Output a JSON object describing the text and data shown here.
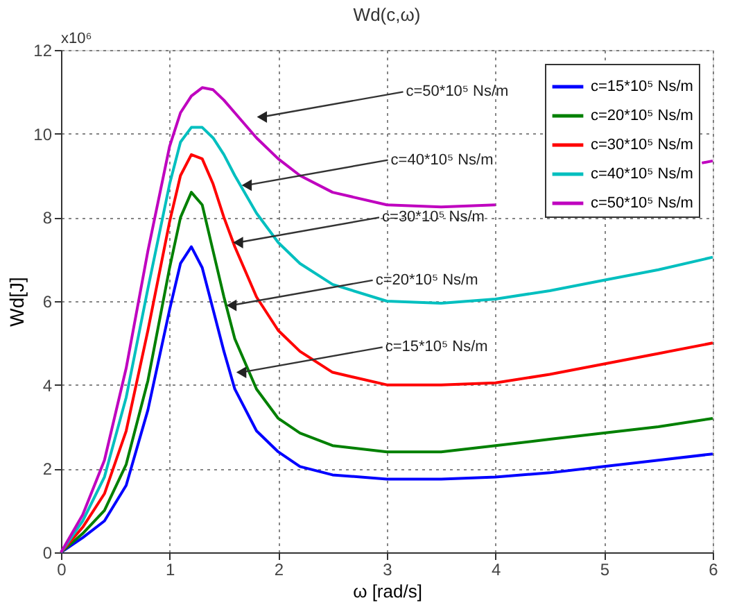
{
  "chart_data": {
    "type": "line",
    "title": "Wd(c,ω)",
    "xlabel": "ω [rad/s]",
    "ylabel": "Wd[J]",
    "x": [
      0,
      0.2,
      0.4,
      0.6,
      0.8,
      1.0,
      1.1,
      1.2,
      1.3,
      1.4,
      1.5,
      1.6,
      1.8,
      2.0,
      2.2,
      2.5,
      3.0,
      3.5,
      4.0,
      4.5,
      5.0,
      5.5,
      6.0
    ],
    "series": [
      {
        "name": "c=15*10⁵ Ns/m",
        "color": "#0000ff",
        "values": [
          0,
          0.35,
          0.75,
          1.6,
          3.4,
          5.8,
          6.9,
          7.3,
          6.8,
          5.8,
          4.8,
          3.9,
          2.9,
          2.4,
          2.05,
          1.85,
          1.75,
          1.75,
          1.8,
          1.9,
          2.05,
          2.2,
          2.35
        ]
      },
      {
        "name": "c=20*10⁵ Ns/m",
        "color": "#008000",
        "values": [
          0,
          0.45,
          1.0,
          2.1,
          4.1,
          6.8,
          8.0,
          8.6,
          8.3,
          7.2,
          6.1,
          5.1,
          3.9,
          3.2,
          2.85,
          2.55,
          2.4,
          2.4,
          2.55,
          2.7,
          2.85,
          3.0,
          3.2
        ]
      },
      {
        "name": "c=30*10⁵ Ns/m",
        "color": "#ff0000",
        "values": [
          0,
          0.6,
          1.4,
          2.9,
          5.3,
          7.9,
          9.0,
          9.5,
          9.4,
          8.8,
          8.0,
          7.3,
          6.1,
          5.3,
          4.8,
          4.3,
          4.0,
          4.0,
          4.05,
          4.25,
          4.5,
          4.75,
          5.0
        ]
      },
      {
        "name": "c=40*10⁵ Ns/m",
        "color": "#00bfbf",
        "values": [
          0,
          0.75,
          1.8,
          3.7,
          6.3,
          8.8,
          9.8,
          10.15,
          10.15,
          9.9,
          9.5,
          9.0,
          8.1,
          7.4,
          6.9,
          6.4,
          6.0,
          5.95,
          6.05,
          6.25,
          6.5,
          6.75,
          7.05
        ]
      },
      {
        "name": "c=50*10⁵ Ns/m",
        "color": "#bf00bf",
        "x": [
          0,
          0.2,
          0.4,
          0.6,
          0.8,
          1.0,
          1.1,
          1.2,
          1.3,
          1.4,
          1.5,
          1.6,
          1.8,
          2.0,
          2.2,
          2.5,
          3.0,
          3.5,
          4.0,
          5.0,
          5.9,
          6.0
        ],
        "values": [
          0,
          0.9,
          2.2,
          4.4,
          7.2,
          9.7,
          10.5,
          10.9,
          11.1,
          11.05,
          10.8,
          10.5,
          9.9,
          9.4,
          9.0,
          8.6,
          8.3,
          8.25,
          8.3,
          null,
          9.3,
          9.35
        ]
      }
    ],
    "xlim": [
      0,
      6
    ],
    "xticks": [
      0,
      1,
      2,
      3,
      4,
      5,
      6
    ],
    "ylim": [
      0,
      12
    ],
    "yticks": [
      0,
      2,
      4,
      6,
      8,
      10,
      12
    ],
    "grid": true,
    "legend": "top right",
    "line_style": "solid",
    "marker": "none",
    "annotations": [
      "x10⁶",
      {
        "text": "c=50*10⁵ Ns/m",
        "x": 1.85,
        "y": 10.4
      },
      {
        "text": "c=40*10⁵ Ns/m",
        "x": 1.71,
        "y": 8.77
      },
      {
        "text": "c=30*10⁵ Ns/m",
        "x": 1.63,
        "y": 7.4
      },
      {
        "text": "c=20*10⁵ Ns/m",
        "x": 1.57,
        "y": 5.9
      },
      {
        "text": "c=15*10⁵ Ns/m",
        "x": 1.66,
        "y": 4.3
      }
    ]
  }
}
